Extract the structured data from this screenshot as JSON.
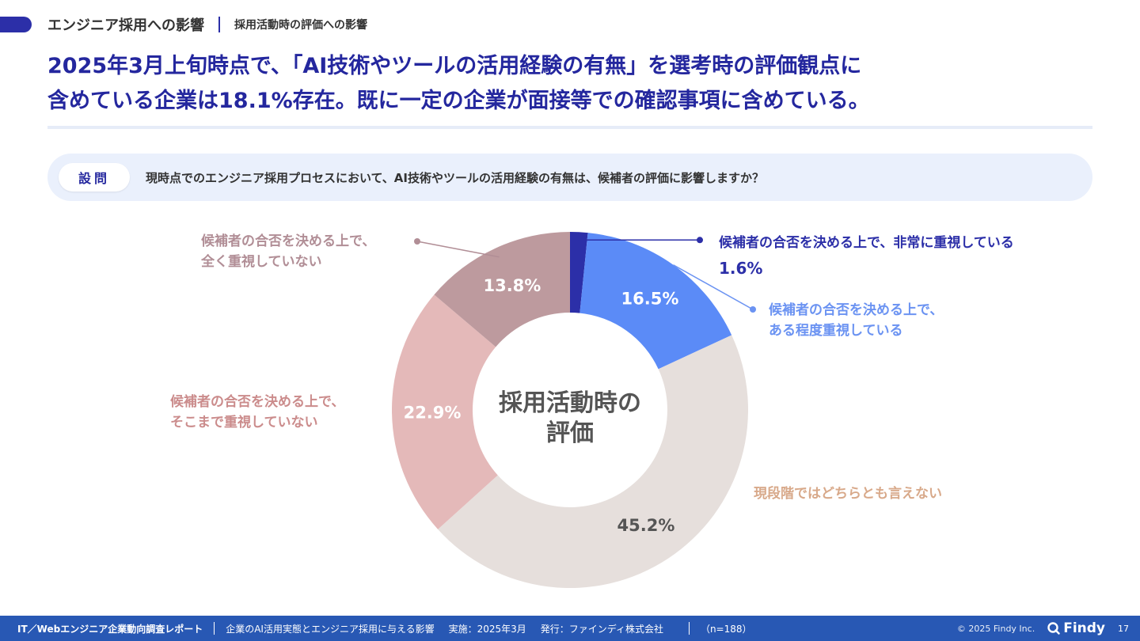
{
  "header": {
    "section": "エンジニア採用への影響",
    "subsection": "採用活動時の評価への影響"
  },
  "headline": {
    "line1": "2025年3月上旬時点で、「AI技術やツールの活用経験の有無」を選考時の評価観点に",
    "line2": "含めている企業は18.1%存在。既に一定の企業が面接等での確認事項に含めている。"
  },
  "question": {
    "badge": "設問",
    "text": "現時点でのエンジニア採用プロセスにおいて、AI技術やツールの活用経験の有無は、候補者の評価に影響しますか？"
  },
  "chart_data": {
    "type": "pie",
    "title": "採用活動時の評価",
    "center_label_line1": "採用活動時の",
    "center_label_line2": "評価",
    "slices": [
      {
        "label": "候補者の合否を決める上で、非常に重視している",
        "value": 1.6,
        "value_label": "1.6%",
        "color": "#2c2fa8"
      },
      {
        "label": "候補者の合否を決める上で、ある程度重視している",
        "value": 16.5,
        "value_label": "16.5%",
        "color": "#5b8bf7"
      },
      {
        "label": "現段階ではどちらとも言えない",
        "value": 45.2,
        "value_label": "45.2%",
        "color": "#e6dfdc"
      },
      {
        "label": "候補者の合否を決める上で、そこまで重視していない",
        "value": 22.9,
        "value_label": "22.9%",
        "color": "#e4b9b9"
      },
      {
        "label": "候補者の合否を決める上で、全く重視していない",
        "value": 13.8,
        "value_label": "13.8%",
        "color": "#bd9a9e"
      }
    ]
  },
  "labels": {
    "high_line1": "候補者の合否を決める上で、非常に重視している",
    "high_pct": "1.6%",
    "some_line1": "候補者の合否を決める上で、",
    "some_line2": "ある程度重視している",
    "neutral": "現段階ではどちらとも言えない",
    "notmuch_line1": "候補者の合否を決める上で、",
    "notmuch_line2": "そこまで重視していない",
    "notatall_line1": "候補者の合否を決める上で、",
    "notatall_line2": "全く重視していない"
  },
  "footer": {
    "report": "IT／Webエンジニア企業動向調査レポート",
    "topic": "企業のAI活用実態とエンジニア採用に与える影響",
    "date": "実施：2025年3月",
    "publisher": "発行：ファインディ株式会社",
    "sample": "（n=188）",
    "copyright": "© 2025 Findy Inc.",
    "brand": "Findy",
    "page": "17"
  },
  "colors": {
    "accent": "#24279e",
    "footer_bg": "#2858b4"
  }
}
